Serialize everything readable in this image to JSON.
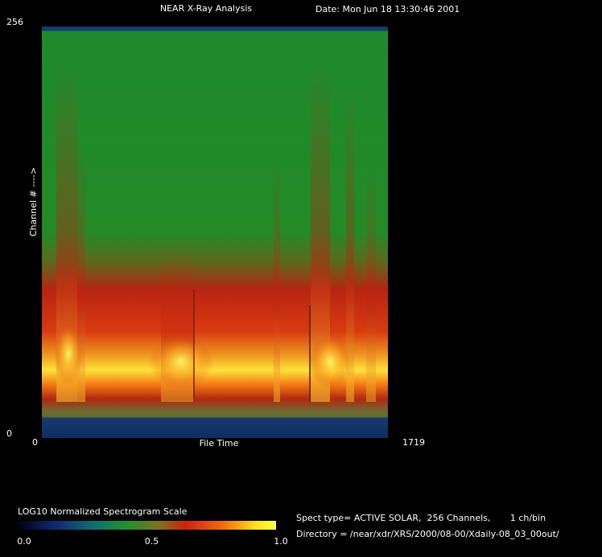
{
  "chart_data": {
    "type": "spectrogram",
    "title": "NEAR X-Ray Analysis",
    "date": "Date: Mon Jun 18 13:30:46 2001",
    "xlabel": "File Time",
    "ylabel": "Channel # ---->",
    "xlim": [
      0,
      1719
    ],
    "xticks": [
      0,
      1719
    ],
    "ylim": [
      0,
      256
    ],
    "yticks": [
      0,
      256
    ],
    "colorbar": {
      "label": "LOG10 Normalized Spectrogram Scale",
      "ticks": [
        {
          "value": 0,
          "label": "0.0"
        },
        0.5,
        {
          "value": 1,
          "label": "1.0"
        }
      ]
    },
    "info": [
      "Spect type= ACTIVE SOLAR,  256 Channels,       1 ch/bin",
      "Directory = /near/xdr/XRS/2000/08-00/Xdaily-08_03_00out/"
    ]
  }
}
